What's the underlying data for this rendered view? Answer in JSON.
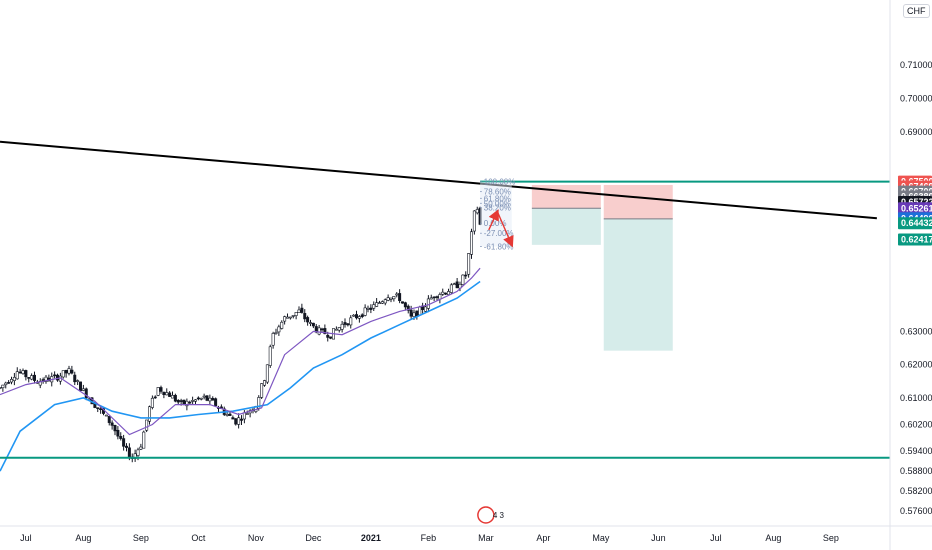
{
  "currency": "CHF",
  "chart_data": {
    "type": "candlestick",
    "ylim": [
      0.5733,
      0.7266
    ],
    "y_ticks": [
      "0.71000",
      "0.70000",
      "0.69000",
      "0.63000",
      "0.62000",
      "0.61000",
      "0.60200",
      "0.59400",
      "0.58800",
      "0.58200",
      "0.57600"
    ],
    "x_ticks": [
      {
        "label": "Jul",
        "month": 6
      },
      {
        "label": "Aug",
        "month": 7
      },
      {
        "label": "Sep",
        "month": 8
      },
      {
        "label": "Oct",
        "month": 9
      },
      {
        "label": "Nov",
        "month": 10
      },
      {
        "label": "Dec",
        "month": 11
      },
      {
        "label": "2021",
        "month": 12
      },
      {
        "label": "Feb",
        "month": 13
      },
      {
        "label": "Mar",
        "month": 14
      },
      {
        "label": "Apr",
        "month": 15
      },
      {
        "label": "May",
        "month": 16
      },
      {
        "label": "Jun",
        "month": 17
      },
      {
        "label": "Jul",
        "month": 18
      },
      {
        "label": "Aug",
        "month": 19
      },
      {
        "label": "Sep",
        "month": 20
      }
    ],
    "anchors": [
      [
        5.55,
        0.613
      ],
      [
        5.85,
        0.618
      ],
      [
        6.2,
        0.615
      ],
      [
        6.5,
        0.616
      ],
      [
        6.75,
        0.618
      ],
      [
        7.0,
        0.612
      ],
      [
        7.3,
        0.606
      ],
      [
        7.5,
        0.602
      ],
      [
        7.7,
        0.595
      ],
      [
        7.85,
        0.592
      ],
      [
        8.0,
        0.596
      ],
      [
        8.15,
        0.607
      ],
      [
        8.3,
        0.613
      ],
      [
        8.5,
        0.611
      ],
      [
        8.7,
        0.608
      ],
      [
        8.9,
        0.609
      ],
      [
        9.1,
        0.61
      ],
      [
        9.3,
        0.608
      ],
      [
        9.5,
        0.605
      ],
      [
        9.65,
        0.603
      ],
      [
        9.8,
        0.605
      ],
      [
        10.0,
        0.608
      ],
      [
        10.15,
        0.616
      ],
      [
        10.3,
        0.629
      ],
      [
        10.5,
        0.634
      ],
      [
        10.75,
        0.636
      ],
      [
        10.95,
        0.632
      ],
      [
        11.1,
        0.63
      ],
      [
        11.3,
        0.629
      ],
      [
        11.5,
        0.632
      ],
      [
        11.7,
        0.634
      ],
      [
        11.9,
        0.636
      ],
      [
        12.1,
        0.638
      ],
      [
        12.3,
        0.641
      ],
      [
        12.5,
        0.64
      ],
      [
        12.7,
        0.634
      ],
      [
        12.9,
        0.637
      ],
      [
        13.1,
        0.641
      ],
      [
        13.3,
        0.642
      ],
      [
        13.5,
        0.644
      ],
      [
        13.65,
        0.647
      ],
      [
        13.75,
        0.659
      ],
      [
        13.83,
        0.669
      ],
      [
        13.9,
        0.662
      ],
      [
        13.95,
        0.6572
      ]
    ],
    "ma_fast": [
      [
        5.55,
        0.611
      ],
      [
        6.0,
        0.614
      ],
      [
        6.6,
        0.616
      ],
      [
        7.2,
        0.609
      ],
      [
        7.8,
        0.599
      ],
      [
        8.2,
        0.602
      ],
      [
        8.6,
        0.608
      ],
      [
        9.2,
        0.608
      ],
      [
        9.7,
        0.605
      ],
      [
        10.1,
        0.607
      ],
      [
        10.5,
        0.623
      ],
      [
        11.0,
        0.63
      ],
      [
        11.5,
        0.629
      ],
      [
        12.0,
        0.633
      ],
      [
        12.5,
        0.636
      ],
      [
        13.0,
        0.638
      ],
      [
        13.5,
        0.642
      ],
      [
        13.75,
        0.646
      ],
      [
        13.9,
        0.649
      ]
    ],
    "ma_slow": [
      [
        5.55,
        0.588
      ],
      [
        5.9,
        0.6
      ],
      [
        6.5,
        0.608
      ],
      [
        7.0,
        0.61
      ],
      [
        7.5,
        0.606
      ],
      [
        8.0,
        0.604
      ],
      [
        8.5,
        0.604
      ],
      [
        9.0,
        0.605
      ],
      [
        9.6,
        0.606
      ],
      [
        10.2,
        0.608
      ],
      [
        10.6,
        0.613
      ],
      [
        11.0,
        0.619
      ],
      [
        11.5,
        0.623
      ],
      [
        12.0,
        0.628
      ],
      [
        12.5,
        0.632
      ],
      [
        13.0,
        0.636
      ],
      [
        13.5,
        0.64
      ],
      [
        13.9,
        0.645
      ]
    ],
    "trendline": {
      "start": [
        5.55,
        0.687
      ],
      "end": [
        20.8,
        0.664
      ]
    },
    "horizontal_lines": [
      0.675,
      0.592
    ],
    "fibonacci": {
      "x_start": 13.9,
      "x_end": 14.45,
      "levels": [
        {
          "label": "100.00%",
          "price": 0.675
        },
        {
          "label": "78.60%",
          "price": 0.672
        },
        {
          "label": "61.80%",
          "price": 0.67
        },
        {
          "label": "50.00%",
          "price": 0.6685
        },
        {
          "label": "38.20%",
          "price": 0.6672
        },
        {
          "label": "0.00%",
          "price": 0.6625
        },
        {
          "label": "-27.00%",
          "price": 0.6595
        },
        {
          "label": "-61.80%",
          "price": 0.6555
        }
      ]
    },
    "positions": [
      {
        "x_start": 14.8,
        "x_end": 16.0,
        "entry": 0.667,
        "stop": 0.674,
        "target": 0.656
      },
      {
        "x_start": 16.05,
        "x_end": 17.25,
        "entry": 0.6638,
        "stop": 0.674,
        "target": 0.6242
      }
    ],
    "arrows": [
      {
        "from": [
          14.05,
          0.6605
        ],
        "to": [
          14.2,
          0.666
        ]
      },
      {
        "from": [
          14.2,
          0.666
        ],
        "to": [
          14.45,
          0.656
        ]
      }
    ],
    "price_tags": [
      {
        "label": "0.67500",
        "price": 0.675,
        "color": "#ef5350"
      },
      {
        "label": "0.67469",
        "price": 0.6735,
        "color": "#ef5350"
      },
      {
        "label": "0.66700",
        "price": 0.672,
        "color": "#787b86"
      },
      {
        "label": "0.66380",
        "price": 0.6705,
        "color": "#787b86"
      },
      {
        "label": "0.65722",
        "price": 0.6689,
        "color": "#131722"
      },
      {
        "label": "0.65261",
        "price": 0.667,
        "color": "#673ab7"
      },
      {
        "label": "0.64490",
        "price": 0.664,
        "color": "#1e6fd9"
      },
      {
        "label": "0.64432",
        "price": 0.6625,
        "color": "#089981"
      },
      {
        "label": "0.62417",
        "price": 0.6576,
        "color": "#089981"
      }
    ],
    "events_badge": {
      "label": "4 3",
      "month": 14.0
    }
  },
  "colors": {
    "candle": "#131722",
    "ma_fast": "#7e57c2",
    "ma_slow": "#2196f3",
    "trendline": "#000000",
    "horizontal": "#089981",
    "stop_zone": "#f7c5c4",
    "target_zone": "#cfe9e6",
    "fib": "#7b8fb3",
    "arrow": "#e53935",
    "axis_text": "#131722",
    "grid_border": "#e0e3eb"
  }
}
